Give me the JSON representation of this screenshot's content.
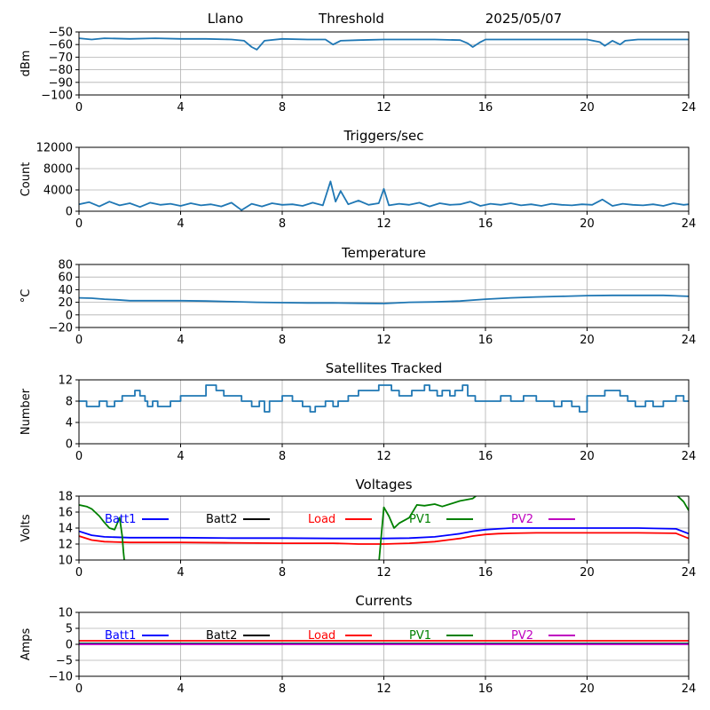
{
  "header": {
    "station": "Llano",
    "mode": "Threshold",
    "date": "2025/05/07"
  },
  "colors": {
    "series_blue": "#1f77b4",
    "batt1": "#0000ff",
    "batt2": "#000000",
    "load": "#ff0000",
    "pv1": "#008000",
    "pv2": "#bf00bf",
    "grid": "#b0b0b0"
  },
  "chart_data": [
    {
      "type": "line",
      "title": "",
      "ylabel": "dBm",
      "xlim": [
        0,
        24
      ],
      "ylim": [
        -100,
        -50
      ],
      "xticks": [
        "0",
        "4",
        "8",
        "12",
        "16",
        "20",
        "24"
      ],
      "yticks": [
        "−50",
        "−60",
        "−70",
        "−80",
        "−90",
        "−100"
      ],
      "grid": true,
      "series": [
        {
          "color": "#1f77b4",
          "x": [
            0,
            0.5,
            1,
            2,
            3,
            4,
            5,
            6,
            6.5,
            6.8,
            7,
            7.3,
            8,
            9,
            9.7,
            10,
            10.3,
            11,
            12,
            13,
            14,
            15,
            15.3,
            15.5,
            15.8,
            16,
            17,
            18,
            19,
            20,
            20.5,
            20.7,
            21,
            21.3,
            21.5,
            22,
            23,
            24
          ],
          "y": [
            -55,
            -56,
            -55,
            -55.5,
            -55,
            -55.5,
            -55.5,
            -56,
            -57,
            -62,
            -64,
            -57,
            -55.5,
            -56,
            -56,
            -60,
            -57,
            -56.5,
            -56,
            -56,
            -56,
            -56.5,
            -59,
            -62,
            -58,
            -56,
            -56,
            -56,
            -56,
            -56,
            -58,
            -61,
            -57,
            -60,
            -57,
            -56,
            -56,
            -56
          ]
        }
      ]
    },
    {
      "type": "line",
      "title": "Triggers/sec",
      "ylabel": "Count",
      "xlim": [
        0,
        24
      ],
      "ylim": [
        0,
        12000
      ],
      "xticks": [
        "0",
        "4",
        "8",
        "12",
        "16",
        "20",
        "24"
      ],
      "yticks": [
        "0",
        "4000",
        "8000",
        "12000"
      ],
      "grid": true,
      "series": [
        {
          "color": "#1f77b4",
          "x": [
            0,
            0.4,
            0.8,
            1.2,
            1.6,
            2,
            2.4,
            2.8,
            3.2,
            3.6,
            4,
            4.4,
            4.8,
            5.2,
            5.6,
            6,
            6.4,
            6.8,
            7.2,
            7.6,
            8,
            8.4,
            8.8,
            9.2,
            9.6,
            9.9,
            10.1,
            10.3,
            10.6,
            11,
            11.4,
            11.8,
            12,
            12.2,
            12.6,
            13,
            13.4,
            13.8,
            14.2,
            14.6,
            15,
            15.4,
            15.8,
            16.2,
            16.6,
            17,
            17.4,
            17.8,
            18.2,
            18.6,
            19,
            19.4,
            19.8,
            20.2,
            20.6,
            21,
            21.4,
            21.8,
            22.2,
            22.6,
            23,
            23.4,
            23.8,
            24
          ],
          "y": [
            1300,
            1700,
            900,
            1800,
            1100,
            1500,
            800,
            1600,
            1200,
            1400,
            1000,
            1500,
            1100,
            1300,
            900,
            1600,
            200,
            1400,
            900,
            1500,
            1200,
            1300,
            1000,
            1600,
            1100,
            5600,
            1800,
            3800,
            1300,
            2000,
            1200,
            1500,
            4200,
            1100,
            1400,
            1200,
            1600,
            900,
            1500,
            1200,
            1300,
            1800,
            1000,
            1400,
            1200,
            1500,
            1100,
            1300,
            1000,
            1400,
            1200,
            1100,
            1300,
            1200,
            2200,
            1000,
            1400,
            1200,
            1100,
            1300,
            1000,
            1500,
            1200,
            1300
          ]
        }
      ]
    },
    {
      "type": "line",
      "title": "Temperature",
      "ylabel": "°C",
      "xlim": [
        0,
        24
      ],
      "ylim": [
        -20,
        80
      ],
      "xticks": [
        "0",
        "4",
        "8",
        "12",
        "16",
        "20",
        "24"
      ],
      "yticks": [
        "−20",
        "0",
        "20",
        "40",
        "60",
        "80"
      ],
      "grid": true,
      "series": [
        {
          "color": "#1f77b4",
          "x": [
            0,
            0.5,
            1,
            1.5,
            2,
            3,
            4,
            5,
            6,
            7,
            8,
            9,
            10,
            11,
            12,
            13,
            14,
            15,
            16,
            17,
            18,
            19,
            20,
            21,
            22,
            23,
            24
          ],
          "y": [
            27,
            26.5,
            25,
            24,
            22.5,
            22.5,
            22.5,
            22,
            21,
            20,
            19.5,
            19,
            19,
            18.5,
            18,
            20,
            20.5,
            22,
            25,
            27,
            28.5,
            29.5,
            30.5,
            31,
            31,
            31,
            29.5
          ]
        }
      ]
    },
    {
      "type": "line",
      "title": "Satellites Tracked",
      "ylabel": "Number",
      "xlim": [
        0,
        24
      ],
      "ylim": [
        0,
        12
      ],
      "xticks": [
        "0",
        "4",
        "8",
        "12",
        "16",
        "20",
        "24"
      ],
      "yticks": [
        "0",
        "4",
        "8",
        "12"
      ],
      "grid": true,
      "series": [
        {
          "color": "#1f77b4",
          "step": true,
          "x": [
            0,
            0.3,
            0.8,
            1.1,
            1.4,
            1.7,
            2.2,
            2.4,
            2.6,
            2.7,
            2.9,
            3.1,
            3.6,
            4.0,
            4.5,
            5.0,
            5.4,
            5.7,
            6.0,
            6.4,
            6.8,
            7.1,
            7.3,
            7.5,
            7.9,
            8.0,
            8.4,
            8.8,
            9.1,
            9.3,
            9.7,
            10.0,
            10.2,
            10.6,
            11.0,
            11.4,
            11.8,
            12.3,
            12.6,
            13.1,
            13.6,
            13.8,
            14.1,
            14.3,
            14.6,
            14.8,
            15.1,
            15.3,
            15.6,
            16.1,
            16.6,
            17.0,
            17.5,
            18.0,
            18.4,
            18.7,
            19.0,
            19.4,
            19.7,
            20.0,
            20.4,
            20.7,
            21.0,
            21.3,
            21.6,
            21.9,
            22.3,
            22.6,
            23.0,
            23.5,
            23.8,
            24
          ],
          "y": [
            8,
            7,
            8,
            7,
            8,
            9,
            10,
            9,
            8,
            7,
            8,
            7,
            8,
            9,
            9,
            11,
            10,
            9,
            9,
            8,
            7,
            8,
            6,
            8,
            8,
            9,
            8,
            7,
            6,
            7,
            8,
            7,
            8,
            9,
            10,
            10,
            11,
            10,
            9,
            10,
            11,
            10,
            9,
            10,
            9,
            10,
            11,
            9,
            8,
            8,
            9,
            8,
            9,
            8,
            8,
            7,
            8,
            7,
            6,
            9,
            9,
            10,
            10,
            9,
            8,
            7,
            8,
            7,
            8,
            9,
            8,
            8
          ]
        }
      ]
    },
    {
      "type": "line",
      "title": "Voltages",
      "ylabel": "Volts",
      "xlim": [
        0,
        24
      ],
      "ylim": [
        10,
        18
      ],
      "xticks": [
        "0",
        "4",
        "8",
        "12",
        "16",
        "20",
        "24"
      ],
      "yticks": [
        "10",
        "12",
        "14",
        "16",
        "18"
      ],
      "grid": true,
      "legend": [
        "Batt1",
        "Batt2",
        "Load",
        "PV1",
        "PV2"
      ],
      "series": [
        {
          "name": "Batt1",
          "color": "#0000ff",
          "x": [
            0,
            0.5,
            1,
            2,
            4,
            6,
            8,
            10,
            11,
            12,
            13,
            14,
            15,
            15.5,
            16,
            16.5,
            17,
            18,
            20,
            22,
            23.5,
            24
          ],
          "y": [
            13.6,
            13.1,
            12.9,
            12.8,
            12.8,
            12.75,
            12.75,
            12.7,
            12.7,
            12.7,
            12.75,
            12.9,
            13.3,
            13.6,
            13.8,
            13.9,
            14,
            14,
            14,
            14,
            13.9,
            13.3
          ]
        },
        {
          "name": "Load",
          "color": "#ff0000",
          "x": [
            0,
            0.5,
            1,
            2,
            4,
            6,
            8,
            10,
            11,
            12,
            13,
            14,
            15,
            15.5,
            16,
            16.5,
            17,
            18,
            20,
            22,
            23.5,
            24
          ],
          "y": [
            13,
            12.5,
            12.3,
            12.2,
            12.2,
            12.15,
            12.1,
            12.1,
            12,
            12,
            12.1,
            12.3,
            12.7,
            13.0,
            13.2,
            13.3,
            13.35,
            13.4,
            13.4,
            13.4,
            13.35,
            12.7
          ]
        },
        {
          "name": "PV1",
          "color": "#008000",
          "x": [
            0,
            0.3,
            0.5,
            0.8,
            1.0,
            1.2,
            1.4,
            1.6,
            1.7,
            1.75,
            1.8
          ],
          "y": [
            16.9,
            16.7,
            16.4,
            15.5,
            14.7,
            14.0,
            13.8,
            15.3,
            13.0,
            11.0,
            9.5
          ]
        },
        {
          "name": "PV1",
          "color": "#008000",
          "x": [
            11.8,
            11.9,
            12.0,
            12.2,
            12.4,
            12.6,
            13.0,
            13.3,
            13.6,
            14.0,
            14.3,
            14.6,
            15.0,
            15.5,
            15.7
          ],
          "y": [
            9.5,
            13.0,
            16.6,
            15.5,
            14.0,
            14.6,
            15.3,
            16.9,
            16.8,
            17.0,
            16.7,
            17.0,
            17.4,
            17.7,
            18.2
          ]
        },
        {
          "name": "PV1",
          "color": "#008000",
          "x": [
            23.5,
            23.8,
            24
          ],
          "y": [
            18.2,
            17.3,
            16.2
          ]
        }
      ]
    },
    {
      "type": "line",
      "title": "Currents",
      "ylabel": "Amps",
      "xlim": [
        0,
        24
      ],
      "ylim": [
        -10,
        10
      ],
      "xticks": [
        "0",
        "4",
        "8",
        "12",
        "16",
        "20",
        "24"
      ],
      "yticks": [
        "−10",
        "−5",
        "0",
        "5",
        "10"
      ],
      "grid": true,
      "legend": [
        "Batt1",
        "Batt2",
        "Load",
        "PV1",
        "PV2"
      ],
      "series": [
        {
          "name": "Load",
          "color": "#ff0000",
          "x": [
            0,
            24
          ],
          "y": [
            1.1,
            1.1
          ]
        },
        {
          "name": "PV1",
          "color": "#008000",
          "x": [
            0,
            24
          ],
          "y": [
            0.3,
            0.3
          ]
        },
        {
          "name": "Batt1",
          "color": "#0000ff",
          "x": [
            0,
            24
          ],
          "y": [
            0.1,
            0.1
          ]
        },
        {
          "name": "PV2",
          "color": "#bf00bf",
          "x": [
            0,
            24
          ],
          "y": [
            0.0,
            0.0
          ]
        }
      ]
    }
  ]
}
